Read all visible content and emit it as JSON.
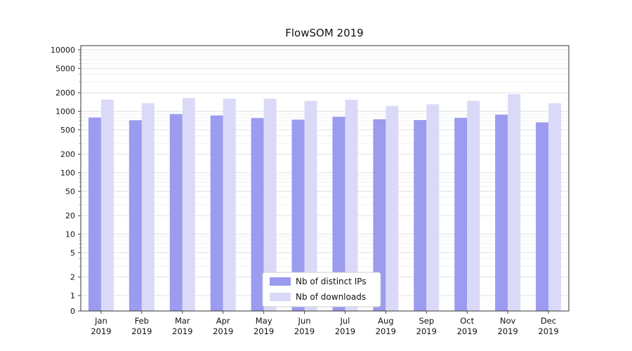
{
  "chart_data": {
    "type": "bar",
    "title": "FlowSOM 2019",
    "xlabel": "",
    "ylabel": "",
    "y_scale": "symlog",
    "grid": true,
    "legend_position": "lower center",
    "ylim": [
      0,
      12000
    ],
    "y_ticks": [
      0,
      1,
      2,
      5,
      10,
      20,
      50,
      100,
      200,
      500,
      1000,
      2000,
      5000,
      10000
    ],
    "categories": [
      "Jan 2019",
      "Feb 2019",
      "Mar 2019",
      "Apr 2019",
      "May 2019",
      "Jun 2019",
      "Jul 2019",
      "Aug 2019",
      "Sep 2019",
      "Oct 2019",
      "Nov 2019",
      "Dec 2019"
    ],
    "series": [
      {
        "name": "Nb of distinct IPs",
        "color": "#9b9bef",
        "values": [
          790,
          715,
          900,
          855,
          775,
          730,
          815,
          740,
          720,
          780,
          880,
          660
        ]
      },
      {
        "name": "Nb of downloads",
        "color": "#dadaf8",
        "values": [
          1550,
          1350,
          1640,
          1600,
          1600,
          1480,
          1540,
          1220,
          1300,
          1480,
          1900,
          1350
        ]
      }
    ]
  },
  "colors": {
    "axis": "#333333",
    "major_grid": "#d8d8d8",
    "minor_grid": "#ededed",
    "text": "#111111",
    "legend_border": "#cccccc",
    "background": "#ffffff"
  }
}
